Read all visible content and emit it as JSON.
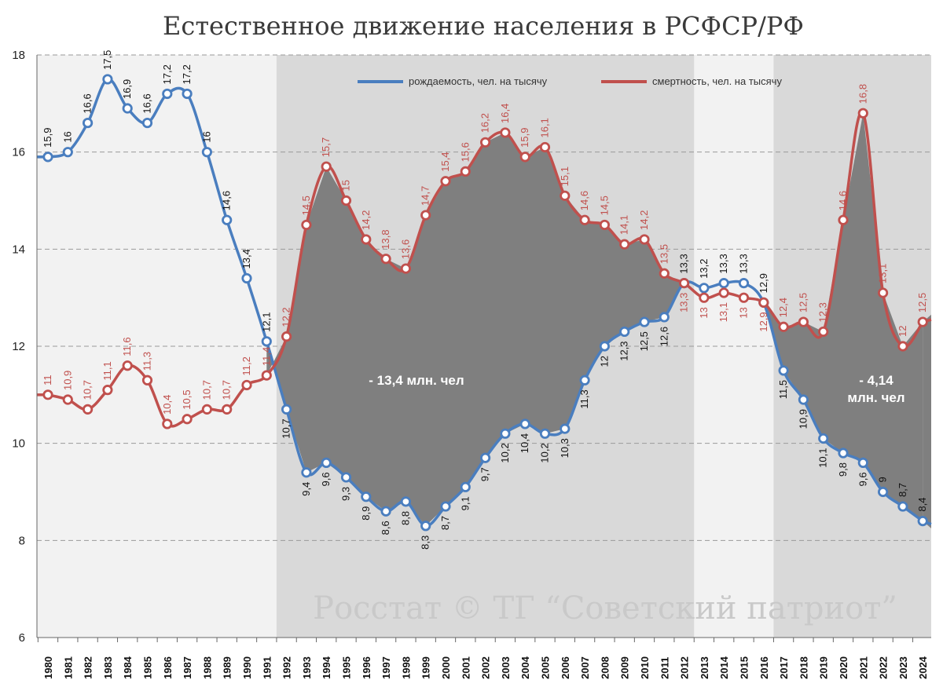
{
  "chart_data": {
    "type": "line",
    "title": "Естественное движение населения в РСФСР/РФ",
    "x": [
      1980,
      1981,
      1982,
      1983,
      1984,
      1985,
      1986,
      1987,
      1988,
      1989,
      1990,
      1991,
      1992,
      1993,
      1994,
      1995,
      1996,
      1997,
      1998,
      1999,
      2000,
      2001,
      2002,
      2003,
      2004,
      2005,
      2006,
      2007,
      2008,
      2009,
      2010,
      2011,
      2012,
      2013,
      2014,
      2015,
      2016,
      2017,
      2018,
      2019,
      2020,
      2021,
      2022,
      2023,
      2024
    ],
    "ylim": [
      6,
      18
    ],
    "yticks": [
      "6",
      "8",
      "10",
      "12",
      "14",
      "16",
      "18"
    ],
    "grid": true,
    "legend_position": "top",
    "series": [
      {
        "name": "рождаемость, чел. на тысячу",
        "color": "#4a7ebf",
        "values": [
          15.9,
          16,
          16.6,
          17.5,
          16.9,
          16.6,
          17.2,
          17.2,
          16,
          14.6,
          13.4,
          12.1,
          10.7,
          9.4,
          9.6,
          9.3,
          8.9,
          8.6,
          8.8,
          8.3,
          8.7,
          9.1,
          9.7,
          10.2,
          10.4,
          10.2,
          10.3,
          11.3,
          12,
          12.3,
          12.5,
          12.6,
          13.3,
          13.2,
          13.3,
          13.3,
          12.9,
          11.5,
          10.9,
          10.1,
          9.8,
          9.6,
          9,
          8.7,
          8.4
        ],
        "labels": [
          "15,9",
          "16",
          "16,6",
          "17,5",
          "16,9",
          "16,6",
          "17,2",
          "17,2",
          "16",
          "14,6",
          "13,4",
          "12,1",
          "10,7",
          "9,4",
          "9,6",
          "9,3",
          "8,9",
          "8,6",
          "8,8",
          "8,3",
          "8,7",
          "9,1",
          "9,7",
          "10,2",
          "10,4",
          "10,2",
          "10,3",
          "11,3",
          "12",
          "12,3",
          "12,5",
          "12,6",
          "13,3",
          "13,2",
          "13,3",
          "13,3",
          "12,9",
          "11,5",
          "10,9",
          "10,1",
          "9,8",
          "9,6",
          "9",
          "8,7",
          "8,4"
        ]
      },
      {
        "name": "смертность, чел. на тысячу",
        "color": "#c0504d",
        "values": [
          11,
          10.9,
          10.7,
          11.1,
          11.6,
          11.3,
          10.4,
          10.5,
          10.7,
          10.7,
          11.2,
          11.4,
          12.2,
          14.5,
          15.7,
          15,
          14.2,
          13.8,
          13.6,
          14.7,
          15.4,
          15.6,
          16.2,
          16.4,
          15.9,
          16.1,
          15.1,
          14.6,
          14.5,
          14.1,
          14.2,
          13.5,
          13.3,
          13,
          13.1,
          13,
          12.9,
          12.4,
          12.5,
          12.3,
          14.6,
          16.8,
          13.1,
          12,
          12.5
        ],
        "labels": [
          "11",
          "10,9",
          "10,7",
          "11,1",
          "11,6",
          "11,3",
          "10,4",
          "10,5",
          "10,7",
          "10,7",
          "11,2",
          "11,4",
          "12,2",
          "14,5",
          "15,7",
          "15",
          "14,2",
          "13,8",
          "13,6",
          "14,7",
          "15,4",
          "15,6",
          "16,2",
          "16,4",
          "15,9",
          "16,1",
          "15,1",
          "14,6",
          "14,5",
          "14,1",
          "14,2",
          "13,5",
          "13,3",
          "13",
          "13,1",
          "13",
          "12,9",
          "12,4",
          "12,5",
          "12,3",
          "14,6",
          "16,8",
          "13,1",
          "12",
          "12,5"
        ]
      }
    ],
    "annotations": [
      "- 13,4 млн. чел",
      "- 4,14",
      "млн. чел"
    ],
    "watermark": "Росстат © ТГ “Советский патриот”",
    "bands": [
      {
        "from": 1992,
        "to": 2012,
        "color": "#d9d9d9"
      },
      {
        "from": 2017,
        "to": 2024,
        "color": "#d9d9d9"
      }
    ]
  }
}
